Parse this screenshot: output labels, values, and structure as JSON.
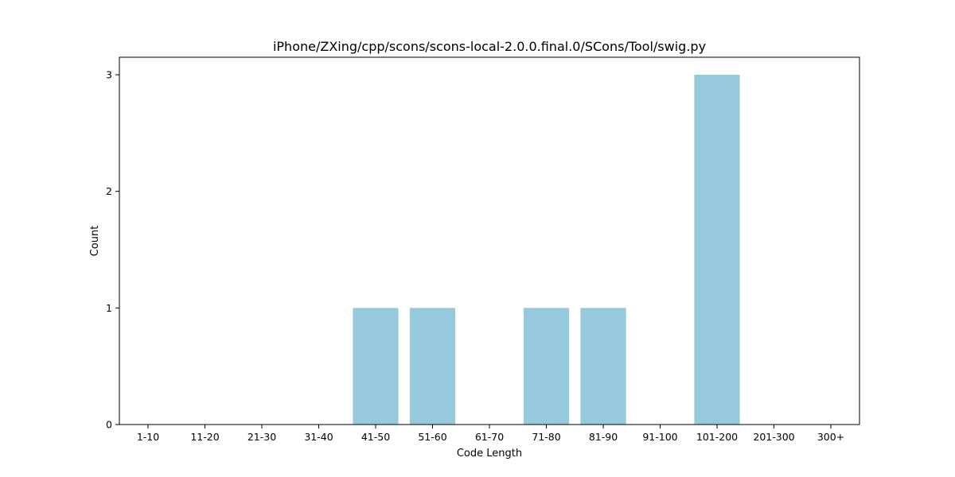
{
  "chart_data": {
    "type": "bar",
    "title": "iPhone/ZXing/cpp/scons/scons-local-2.0.0.final.0/SCons/Tool/swig.py",
    "xlabel": "Code Length",
    "ylabel": "Count",
    "categories": [
      "1-10",
      "11-20",
      "21-30",
      "31-40",
      "41-50",
      "51-60",
      "61-70",
      "71-80",
      "81-90",
      "91-100",
      "101-200",
      "201-300",
      "300+"
    ],
    "values": [
      0,
      0,
      0,
      0,
      1,
      1,
      0,
      1,
      1,
      0,
      3,
      0,
      0
    ],
    "yticks": [
      0,
      1,
      2,
      3
    ],
    "ylim": [
      0,
      3.15
    ],
    "grid": false,
    "legend": "none",
    "bar_color": "#96c9dc"
  }
}
